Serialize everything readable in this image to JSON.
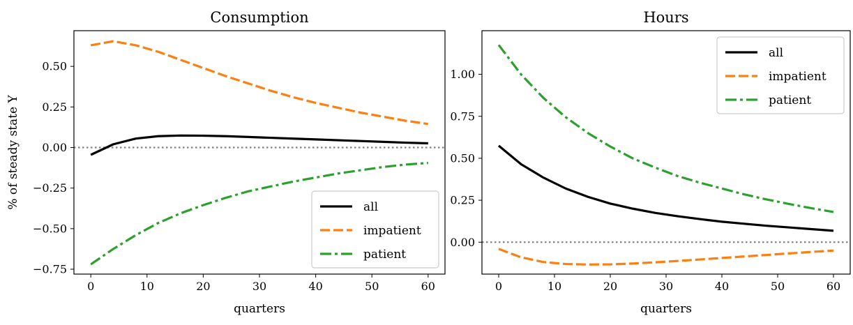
{
  "chart_data": [
    {
      "type": "line",
      "title": "Consumption",
      "xlabel": "quarters",
      "ylabel": "% of steady state Y",
      "xlim": [
        -3,
        63
      ],
      "ylim": [
        -0.78,
        0.72
      ],
      "xticks": [
        0,
        10,
        20,
        30,
        40,
        50,
        60
      ],
      "xtick_labels": [
        "0",
        "10",
        "20",
        "30",
        "40",
        "50",
        "60"
      ],
      "yticks": [
        0.5,
        0.25,
        0.0,
        -0.25,
        -0.5,
        -0.75
      ],
      "ytick_labels": [
        "0.50",
        "0.25",
        "0.00",
        "−0.25",
        "−0.50",
        "−0.75"
      ],
      "zero_line": true,
      "legend_position": "lower-right",
      "x": [
        0,
        4,
        8,
        12,
        16,
        20,
        24,
        28,
        32,
        36,
        40,
        44,
        48,
        52,
        56,
        60
      ],
      "series": [
        {
          "name": "all",
          "color": "#000000",
          "dash": "solid",
          "values": [
            -0.045,
            0.02,
            0.055,
            0.07,
            0.074,
            0.073,
            0.07,
            0.065,
            0.06,
            0.055,
            0.05,
            0.045,
            0.04,
            0.035,
            0.03,
            0.026
          ]
        },
        {
          "name": "impatient",
          "color": "#ff7f0e",
          "dash": "dashed",
          "values": [
            0.63,
            0.655,
            0.63,
            0.59,
            0.54,
            0.49,
            0.44,
            0.395,
            0.35,
            0.31,
            0.275,
            0.245,
            0.215,
            0.19,
            0.165,
            0.145
          ]
        },
        {
          "name": "patient",
          "color": "#2ca02c",
          "dash": "dashdot",
          "values": [
            -0.72,
            -0.625,
            -0.54,
            -0.465,
            -0.405,
            -0.355,
            -0.31,
            -0.27,
            -0.24,
            -0.21,
            -0.185,
            -0.16,
            -0.14,
            -0.12,
            -0.105,
            -0.095
          ]
        }
      ]
    },
    {
      "type": "line",
      "title": "Hours",
      "xlabel": "quarters",
      "ylabel": "",
      "xlim": [
        -3,
        63
      ],
      "ylim": [
        -0.19,
        1.26
      ],
      "xticks": [
        0,
        10,
        20,
        30,
        40,
        50,
        60
      ],
      "xtick_labels": [
        "0",
        "10",
        "20",
        "30",
        "40",
        "50",
        "60"
      ],
      "yticks": [
        1.0,
        0.75,
        0.5,
        0.25,
        0.0
      ],
      "ytick_labels": [
        "1.00",
        "0.75",
        "0.50",
        "0.25",
        "0.00"
      ],
      "zero_line": true,
      "legend_position": "upper-right",
      "x": [
        0,
        4,
        8,
        12,
        16,
        20,
        24,
        28,
        32,
        36,
        40,
        44,
        48,
        52,
        56,
        60
      ],
      "series": [
        {
          "name": "all",
          "color": "#000000",
          "dash": "solid",
          "values": [
            0.575,
            0.465,
            0.385,
            0.32,
            0.27,
            0.23,
            0.2,
            0.175,
            0.155,
            0.138,
            0.122,
            0.11,
            0.098,
            0.088,
            0.078,
            0.068
          ]
        },
        {
          "name": "impatient",
          "color": "#ff7f0e",
          "dash": "dashed",
          "values": [
            -0.04,
            -0.09,
            -0.118,
            -0.13,
            -0.133,
            -0.132,
            -0.127,
            -0.12,
            -0.112,
            -0.103,
            -0.094,
            -0.085,
            -0.076,
            -0.067,
            -0.058,
            -0.05
          ]
        },
        {
          "name": "patient",
          "color": "#2ca02c",
          "dash": "dashdot",
          "values": [
            1.175,
            1.0,
            0.86,
            0.745,
            0.65,
            0.57,
            0.5,
            0.445,
            0.395,
            0.355,
            0.32,
            0.285,
            0.255,
            0.228,
            0.203,
            0.18
          ]
        }
      ]
    }
  ]
}
